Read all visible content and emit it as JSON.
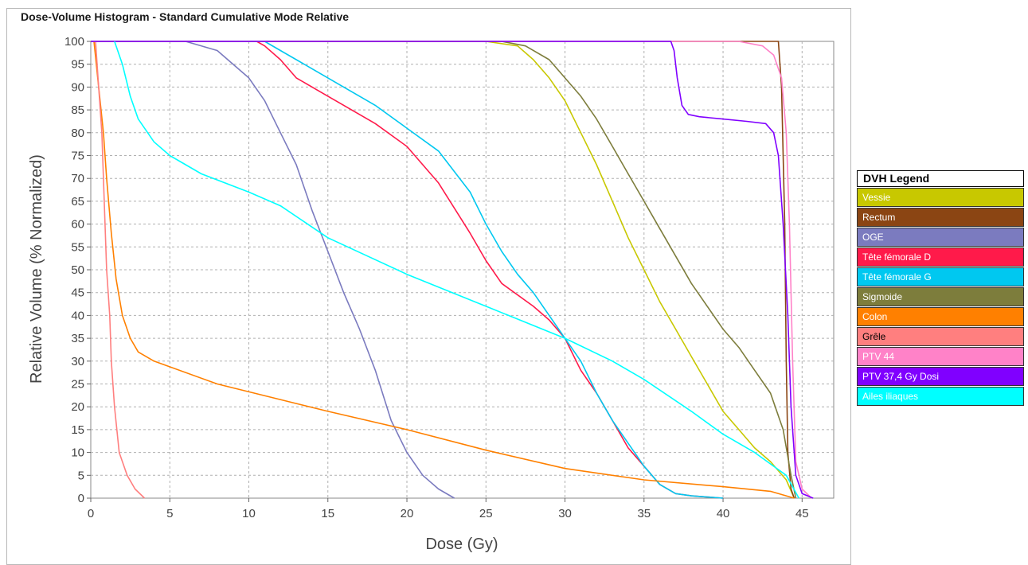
{
  "panel": {
    "title": "Dose-Volume Histogram - Standard Cumulative Mode Relative"
  },
  "legend": {
    "title": "DVH Legend",
    "items": [
      {
        "label": "Vessie",
        "color": "#c8c800"
      },
      {
        "label": "Rectum",
        "color": "#8b4513"
      },
      {
        "label": "OGE",
        "color": "#7b7bbf"
      },
      {
        "label": "Tête fémorale D",
        "color": "#ff1a4a"
      },
      {
        "label": "Tête fémorale G",
        "color": "#00c8f0"
      },
      {
        "label": "Sigmoide",
        "color": "#7d7d3c"
      },
      {
        "label": "Colon",
        "color": "#ff8000"
      },
      {
        "label": "Grêle",
        "color": "#ff7f7f"
      },
      {
        "label": "PTV 44",
        "color": "#ff82c8"
      },
      {
        "label": "PTV 37,4 Gy  Dosi",
        "color": "#8000ff"
      },
      {
        "label": "Ailes iliaques",
        "color": "#00ffff"
      }
    ]
  },
  "chart_data": {
    "type": "line",
    "xlabel": "Dose (Gy)",
    "ylabel": "Relative Volume (% Normalized)",
    "xlim": [
      0,
      47
    ],
    "ylim": [
      0,
      100
    ],
    "xticks": [
      0,
      5,
      10,
      15,
      20,
      25,
      30,
      35,
      40,
      45
    ],
    "yticks": [
      0,
      5,
      10,
      15,
      20,
      25,
      30,
      35,
      40,
      45,
      50,
      55,
      60,
      65,
      70,
      75,
      80,
      85,
      90,
      95,
      100
    ],
    "grid": true,
    "legend_position": "right",
    "series": [
      {
        "name": "Vessie",
        "color": "#c8c800",
        "points": [
          [
            0,
            100
          ],
          [
            25,
            100
          ],
          [
            27,
            99
          ],
          [
            28,
            96
          ],
          [
            29,
            92
          ],
          [
            30,
            87
          ],
          [
            31,
            80
          ],
          [
            32,
            73
          ],
          [
            33,
            65
          ],
          [
            34,
            57
          ],
          [
            35,
            50
          ],
          [
            36,
            43
          ],
          [
            37,
            37
          ],
          [
            38,
            31
          ],
          [
            39,
            25
          ],
          [
            40,
            19
          ],
          [
            41,
            15
          ],
          [
            42,
            11
          ],
          [
            43,
            8
          ],
          [
            44,
            4
          ],
          [
            44.5,
            0
          ]
        ]
      },
      {
        "name": "Rectum",
        "color": "#8b4513",
        "points": [
          [
            0,
            100
          ],
          [
            43.5,
            100
          ],
          [
            43.7,
            90
          ],
          [
            43.9,
            60
          ],
          [
            44,
            30
          ],
          [
            44.1,
            10
          ],
          [
            44.3,
            2
          ],
          [
            44.5,
            0
          ]
        ]
      },
      {
        "name": "OGE",
        "color": "#7b7bbf",
        "points": [
          [
            0,
            100
          ],
          [
            6,
            100
          ],
          [
            8,
            98
          ],
          [
            10,
            92
          ],
          [
            11,
            87
          ],
          [
            12,
            80
          ],
          [
            13,
            73
          ],
          [
            14,
            63
          ],
          [
            15,
            54
          ],
          [
            16,
            45
          ],
          [
            17,
            37
          ],
          [
            18,
            28
          ],
          [
            19,
            17
          ],
          [
            20,
            10
          ],
          [
            21,
            5
          ],
          [
            22,
            2
          ],
          [
            23,
            0
          ]
        ]
      },
      {
        "name": "Tête fémorale D",
        "color": "#ff1a4a",
        "points": [
          [
            0,
            100
          ],
          [
            10.5,
            100
          ],
          [
            11,
            99
          ],
          [
            12,
            96
          ],
          [
            13,
            92
          ],
          [
            15,
            88
          ],
          [
            18,
            82
          ],
          [
            20,
            77
          ],
          [
            22,
            69
          ],
          [
            24,
            58
          ],
          [
            25,
            52
          ],
          [
            26,
            47
          ],
          [
            28,
            42
          ],
          [
            29,
            39
          ],
          [
            30,
            35
          ],
          [
            31,
            28
          ],
          [
            32,
            23
          ],
          [
            33,
            17
          ],
          [
            34,
            11
          ],
          [
            35,
            7
          ],
          [
            36,
            3
          ],
          [
            37,
            1
          ],
          [
            38,
            0.5
          ],
          [
            40,
            0
          ]
        ]
      },
      {
        "name": "Tête fémorale G",
        "color": "#00c8f0",
        "points": [
          [
            0,
            100
          ],
          [
            11,
            100
          ],
          [
            12,
            98
          ],
          [
            14,
            94
          ],
          [
            16,
            90
          ],
          [
            18,
            86
          ],
          [
            20,
            81
          ],
          [
            22,
            76
          ],
          [
            24,
            67
          ],
          [
            25,
            60
          ],
          [
            26,
            54
          ],
          [
            27,
            49
          ],
          [
            28,
            45
          ],
          [
            30,
            35
          ],
          [
            31,
            30
          ],
          [
            32,
            23
          ],
          [
            33,
            17
          ],
          [
            34,
            12
          ],
          [
            35,
            7
          ],
          [
            36,
            3
          ],
          [
            37,
            1
          ],
          [
            38,
            0.5
          ],
          [
            40,
            0
          ]
        ]
      },
      {
        "name": "Sigmoide",
        "color": "#7d7d3c",
        "points": [
          [
            0,
            100
          ],
          [
            26,
            100
          ],
          [
            27.5,
            99
          ],
          [
            29,
            96
          ],
          [
            30,
            92
          ],
          [
            31,
            88
          ],
          [
            32,
            83
          ],
          [
            33,
            77
          ],
          [
            34,
            71
          ],
          [
            35,
            65
          ],
          [
            36,
            59
          ],
          [
            37,
            53
          ],
          [
            38,
            47
          ],
          [
            39,
            42
          ],
          [
            40,
            37
          ],
          [
            41,
            33
          ],
          [
            42,
            28
          ],
          [
            43,
            23
          ],
          [
            43.8,
            15
          ],
          [
            44.3,
            5
          ],
          [
            44.6,
            0
          ]
        ]
      },
      {
        "name": "Colon",
        "color": "#ff8000",
        "points": [
          [
            0.2,
            100
          ],
          [
            0.5,
            90
          ],
          [
            0.8,
            80
          ],
          [
            1,
            70
          ],
          [
            1.3,
            58
          ],
          [
            1.6,
            48
          ],
          [
            2,
            40
          ],
          [
            2.5,
            35
          ],
          [
            3,
            32
          ],
          [
            4,
            30
          ],
          [
            8,
            25
          ],
          [
            15,
            19
          ],
          [
            20,
            15
          ],
          [
            25,
            10.5
          ],
          [
            30,
            6.5
          ],
          [
            35,
            4
          ],
          [
            40,
            2.5
          ],
          [
            43,
            1.5
          ],
          [
            44.5,
            0
          ]
        ]
      },
      {
        "name": "Grêle",
        "color": "#ff7f7f",
        "points": [
          [
            0.3,
            100
          ],
          [
            0.5,
            90
          ],
          [
            0.7,
            80
          ],
          [
            0.8,
            70
          ],
          [
            0.9,
            60
          ],
          [
            1,
            50
          ],
          [
            1.2,
            40
          ],
          [
            1.3,
            30
          ],
          [
            1.5,
            20
          ],
          [
            1.8,
            10
          ],
          [
            2.3,
            5
          ],
          [
            2.8,
            2
          ],
          [
            3.4,
            0
          ]
        ]
      },
      {
        "name": "PTV 44",
        "color": "#ff82c8",
        "points": [
          [
            0,
            100
          ],
          [
            41,
            100
          ],
          [
            42.5,
            99
          ],
          [
            43.2,
            97
          ],
          [
            43.7,
            92
          ],
          [
            44,
            80
          ],
          [
            44.2,
            60
          ],
          [
            44.4,
            30
          ],
          [
            44.6,
            8
          ],
          [
            45,
            2
          ],
          [
            45.6,
            0
          ]
        ]
      },
      {
        "name": "PTV 37,4 Gy  Dosi",
        "color": "#8000ff",
        "points": [
          [
            0,
            100
          ],
          [
            36.7,
            100
          ],
          [
            36.9,
            98
          ],
          [
            37.1,
            92
          ],
          [
            37.4,
            86
          ],
          [
            37.8,
            84
          ],
          [
            38.5,
            83.5
          ],
          [
            40,
            83
          ],
          [
            41.5,
            82.5
          ],
          [
            42.7,
            82
          ],
          [
            43.2,
            80
          ],
          [
            43.5,
            75
          ],
          [
            43.8,
            60
          ],
          [
            44.1,
            40
          ],
          [
            44.3,
            20
          ],
          [
            44.6,
            5
          ],
          [
            45,
            1
          ],
          [
            45.7,
            0
          ]
        ]
      },
      {
        "name": "Ailes iliaques",
        "color": "#00ffff",
        "points": [
          [
            1.5,
            100
          ],
          [
            2,
            95
          ],
          [
            2.5,
            88
          ],
          [
            3,
            83
          ],
          [
            4,
            78
          ],
          [
            5,
            75
          ],
          [
            7,
            71
          ],
          [
            10,
            67
          ],
          [
            12,
            64
          ],
          [
            15,
            57
          ],
          [
            20,
            49
          ],
          [
            25,
            42
          ],
          [
            30,
            35
          ],
          [
            33,
            30
          ],
          [
            35,
            26
          ],
          [
            38,
            19
          ],
          [
            40,
            14
          ],
          [
            42,
            10
          ],
          [
            43,
            7.5
          ],
          [
            44,
            5
          ],
          [
            44.8,
            0
          ]
        ]
      }
    ]
  }
}
